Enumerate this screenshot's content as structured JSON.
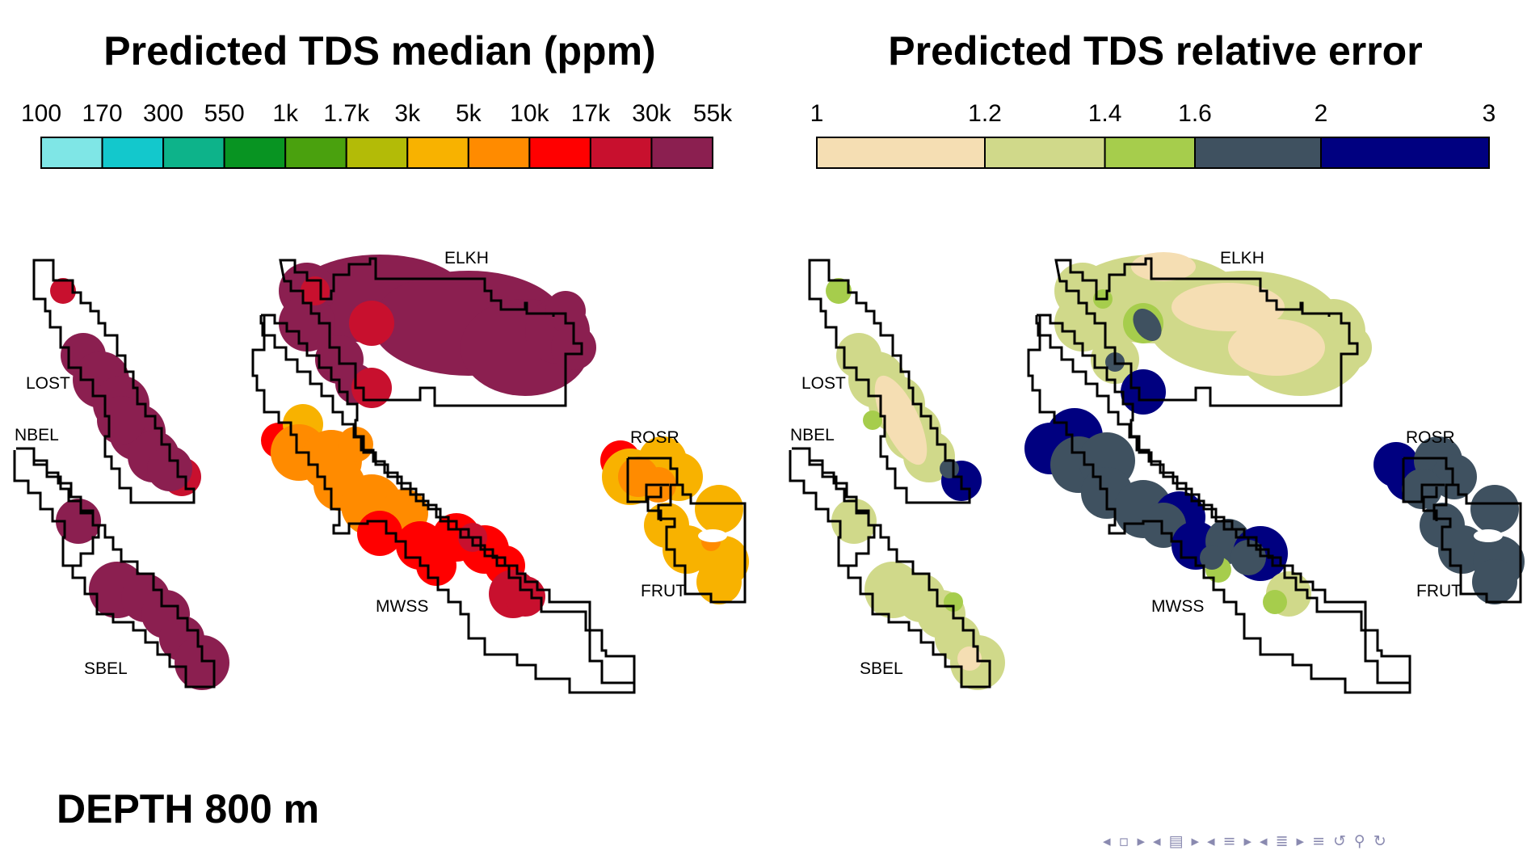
{
  "titles": {
    "left": "Predicted TDS median (ppm)",
    "right": "Predicted TDS relative error"
  },
  "left_legend": {
    "ticks": [
      "100",
      "170",
      "300",
      "550",
      "1k",
      "1.7k",
      "3k",
      "5k",
      "10k",
      "17k",
      "30k",
      "55k"
    ],
    "colors": [
      "#7fe6e6",
      "#13c8cc",
      "#0db38a",
      "#089422",
      "#4aa10e",
      "#b3bb07",
      "#f8b200",
      "#ff8b00",
      "#ff0000",
      "#c8102e",
      "#8b1f50"
    ]
  },
  "right_legend": {
    "ticks": [
      {
        "label": "1",
        "value": 1.0
      },
      {
        "label": "1.2",
        "value": 1.2
      },
      {
        "label": "1.4",
        "value": 1.4
      },
      {
        "label": "1.6",
        "value": 1.6
      },
      {
        "label": "2",
        "value": 2.0
      },
      {
        "label": "3",
        "value": 3.0
      }
    ],
    "colors": [
      "#f5deb3",
      "#d0d98a",
      "#a6cd4c",
      "#3f5160",
      "#000080"
    ]
  },
  "regions": [
    "LOST",
    "NBEL",
    "SBEL",
    "ELKH",
    "MWSS",
    "ROSR",
    "FRUT"
  ],
  "depth_label": "DEPTH 800 m",
  "nav_icons": [
    "nav-prev-icon",
    "frame-icon",
    "nav-next-icon",
    "nav-prev-icon",
    "subsection-icon",
    "nav-next-icon",
    "nav-prev-icon",
    "section-icon",
    "nav-next-icon",
    "nav-prev-icon",
    "list-icon",
    "nav-next-icon",
    "align-icon",
    "back-icon",
    "search-icon",
    "forward-icon"
  ]
}
